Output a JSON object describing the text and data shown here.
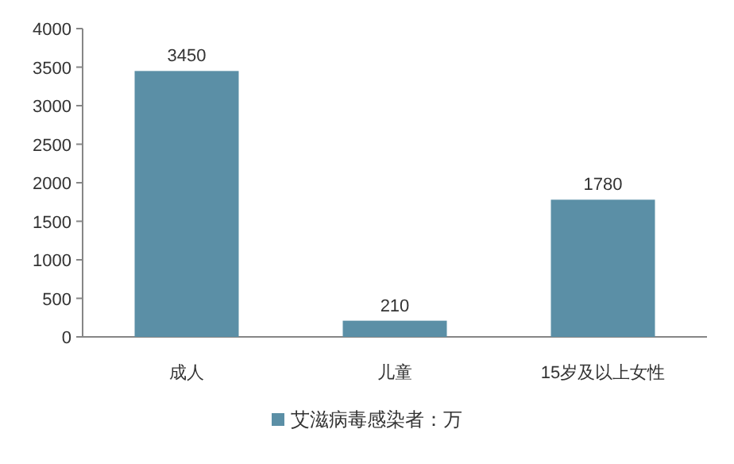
{
  "chart_data": {
    "type": "bar",
    "categories": [
      "成人",
      "儿童",
      "15岁及以上女性"
    ],
    "series": [
      {
        "name": "艾滋病毒感染者：万",
        "color": "#5b8fa6",
        "values": [
          3450,
          210,
          1780
        ]
      }
    ],
    "ylim": [
      0,
      4000
    ],
    "yticks": [
      0,
      500,
      1000,
      1500,
      2000,
      2500,
      3000,
      3500,
      4000
    ],
    "data_labels": true,
    "legend": "bottom",
    "grid": false
  }
}
